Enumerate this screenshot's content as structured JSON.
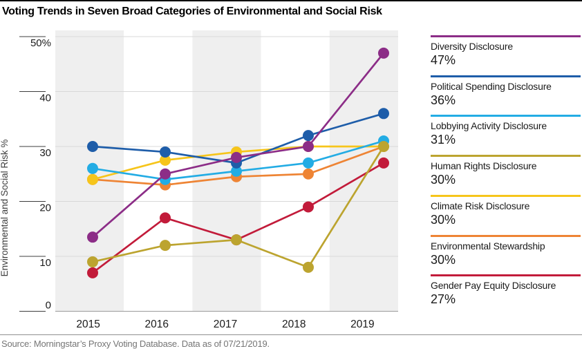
{
  "title": "Voting Trends in Seven Broad Categories of Environmental and Social Risk",
  "source": "Source: Morningstar’s Proxy Voting Database. Data as of 07/21/2019.",
  "chart_data": {
    "type": "line",
    "title": "Voting Trends in Seven Broad Categories of Environmental and Social Risk",
    "xlabel": "",
    "ylabel": "Environmental and Social Risk %",
    "x": [
      2015,
      2016,
      2017,
      2018,
      2019
    ],
    "ylim": [
      0,
      50
    ],
    "yticks": [
      0,
      10,
      20,
      30,
      40,
      50
    ],
    "ytick_labels": [
      "0",
      "10",
      "20",
      "30",
      "40",
      "50%"
    ],
    "grid": "horizontal-light",
    "shaded_years": [
      2015,
      2017,
      2019
    ],
    "legend_position": "right",
    "series": [
      {
        "name": "Diversity Disclosure",
        "value_label": "47%",
        "color": "#8C2D87",
        "values": [
          13.5,
          25,
          28,
          30,
          47
        ]
      },
      {
        "name": "Political Spending Disclosure",
        "value_label": "36%",
        "color": "#1E5DA9",
        "values": [
          30,
          29,
          27,
          32,
          36
        ]
      },
      {
        "name": "Lobbying Activity Disclosure",
        "value_label": "31%",
        "color": "#23ACE4",
        "values": [
          26,
          24,
          25.5,
          27,
          31
        ]
      },
      {
        "name": "Human Rights Disclosure",
        "value_label": "30%",
        "color": "#BCA42F",
        "values": [
          9,
          12,
          13,
          8,
          30
        ]
      },
      {
        "name": "Climate Risk Disclosure",
        "value_label": "30%",
        "color": "#F6C51B",
        "values": [
          24,
          27.5,
          29,
          30,
          30
        ]
      },
      {
        "name": "Environmental Stewardship",
        "value_label": "30%",
        "color": "#EE8434",
        "values": [
          24,
          23,
          24.5,
          25,
          30
        ]
      },
      {
        "name": "Gender Pay Equity Disclosure",
        "value_label": "27%",
        "color": "#C21B3A",
        "values": [
          7,
          17,
          13,
          19,
          27
        ]
      }
    ]
  }
}
